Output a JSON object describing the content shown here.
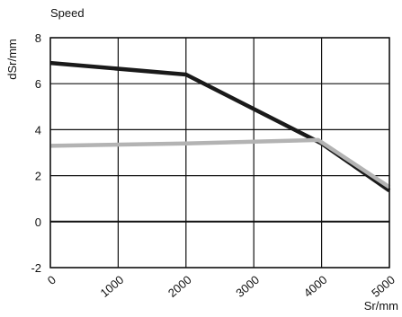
{
  "chart_data": {
    "type": "line",
    "title": "Speed",
    "xlabel": "Sr/mm",
    "ylabel": "dSr/mm",
    "xlim": [
      0,
      5000
    ],
    "ylim": [
      -2,
      8
    ],
    "x_ticks": [
      "0",
      "1000",
      "2000",
      "3000",
      "4000",
      "5000"
    ],
    "y_ticks": [
      "-2",
      "0",
      "2",
      "4",
      "6",
      "8"
    ],
    "grid": true,
    "series": [
      {
        "color": "#1a1a1a",
        "x": [
          0,
          2000,
          4000,
          5000
        ],
        "y": [
          6.9,
          6.4,
          3.4,
          1.35
        ]
      },
      {
        "color": "#b3b3b3",
        "x": [
          0,
          2000,
          3950,
          5000
        ],
        "y": [
          3.3,
          3.4,
          3.55,
          1.5
        ]
      }
    ]
  }
}
